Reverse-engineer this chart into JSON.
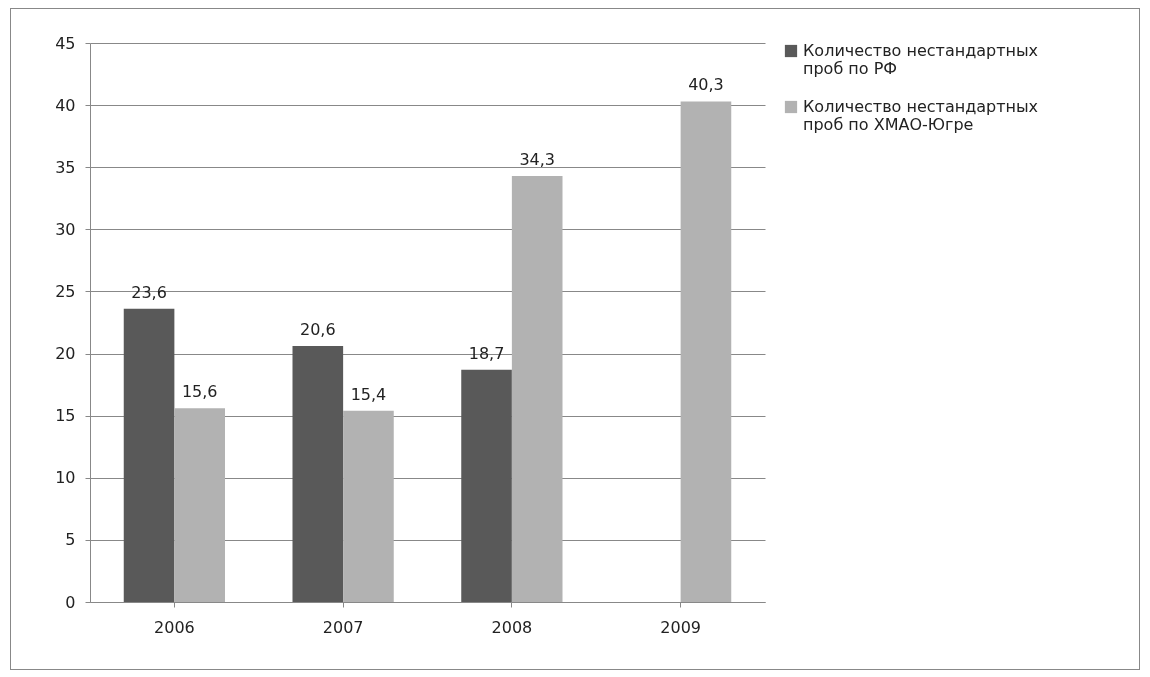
{
  "chart_data": {
    "type": "bar",
    "categories": [
      "2006",
      "2007",
      "2008",
      "2009"
    ],
    "series": [
      {
        "name": "Количество нестандартных проб по РФ",
        "color": "#595959",
        "values": [
          23.6,
          20.6,
          18.7,
          null
        ],
        "value_labels": [
          "23,6",
          "20,6",
          "18,7",
          null
        ]
      },
      {
        "name": "Количество нестандартных проб по ХМАО-Югре",
        "color": "#b2b2b2",
        "values": [
          15.6,
          15.4,
          34.3,
          40.3
        ],
        "value_labels": [
          "15,6",
          "15,4",
          "34,3",
          "40,3"
        ]
      }
    ],
    "ylim": [
      0,
      45
    ],
    "yticks": [
      0,
      5,
      10,
      15,
      20,
      25,
      30,
      35,
      40,
      45
    ],
    "grid": "y",
    "legend": "right"
  }
}
